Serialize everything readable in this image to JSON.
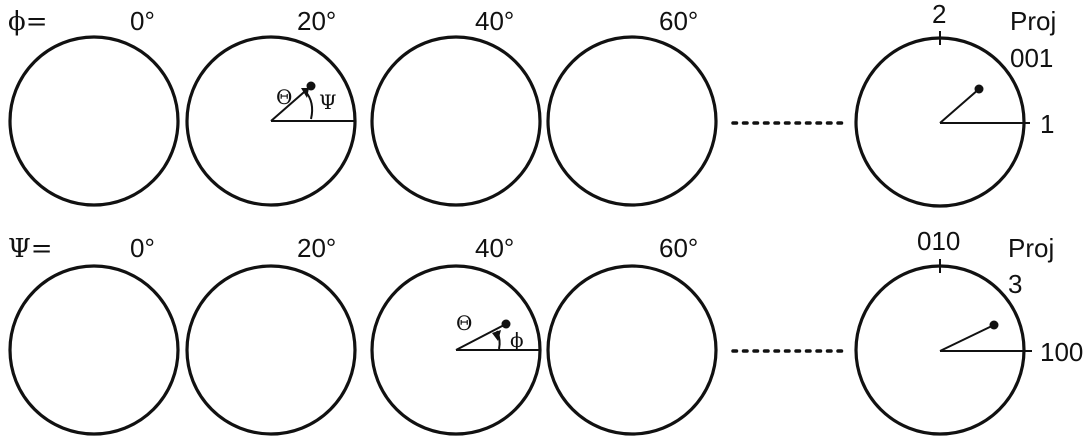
{
  "row1": {
    "variable": "ϕ=",
    "angles": [
      "0°",
      "20°",
      "40°",
      "60°"
    ],
    "detail": {
      "theta": "Θ",
      "psi": "Ψ"
    },
    "projection": {
      "line1": "Proj",
      "line2": "001",
      "top_axis": "2",
      "right_axis": "1"
    }
  },
  "row2": {
    "variable": "Ψ=",
    "angles": [
      "0°",
      "20°",
      "40°",
      "60°"
    ],
    "detail": {
      "theta": "Θ",
      "phi": "ϕ"
    },
    "projection": {
      "line1": "Proj",
      "line2": "3",
      "top_axis": "010",
      "right_axis": "100"
    }
  }
}
